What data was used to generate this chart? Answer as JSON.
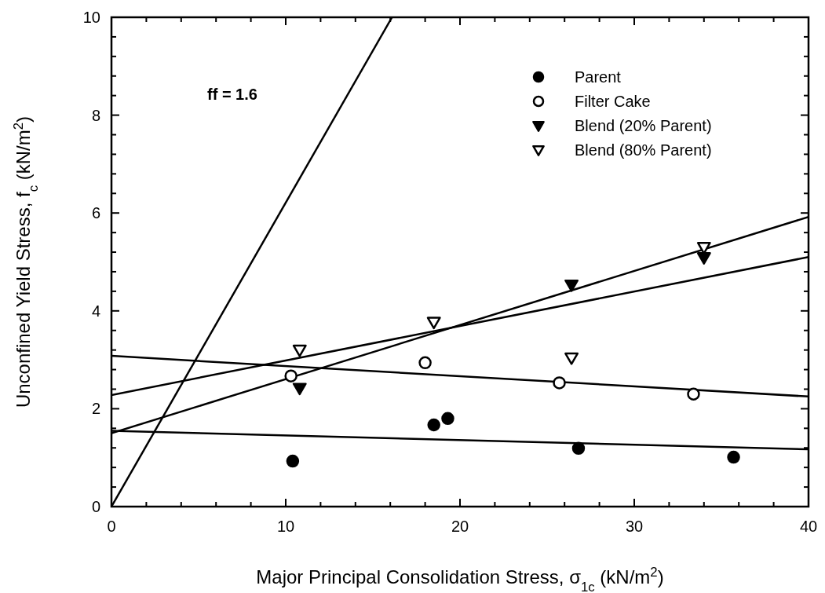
{
  "chart_data": {
    "type": "scatter",
    "xlabel": "Major Principal Consolidation Stress, σ$_{1c}$ (kN/m$^{2}$)",
    "ylabel": "Unconfined Yield Stress, f$_{c}$ (kN/m$^{2}$)",
    "xlim": [
      0,
      40
    ],
    "ylim": [
      0,
      10
    ],
    "xticks": [
      0,
      {
        "value": 2,
        "label": null
      },
      {
        "value": 4,
        "label": null
      },
      {
        "value": 6,
        "label": null
      },
      {
        "value": 8,
        "label": null
      },
      10,
      {
        "value": 12,
        "label": null
      },
      {
        "value": 14,
        "label": null
      },
      {
        "value": 16,
        "label": null
      },
      {
        "value": 18,
        "label": null
      },
      20,
      {
        "value": 22,
        "label": null
      },
      {
        "value": 24,
        "label": null
      },
      {
        "value": 26,
        "label": null
      },
      {
        "value": 28,
        "label": null
      },
      30,
      {
        "value": 32,
        "label": null
      },
      {
        "value": 34,
        "label": null
      },
      {
        "value": 36,
        "label": null
      },
      {
        "value": 38,
        "label": null
      },
      40
    ],
    "yticks": [
      0,
      {
        "value": 0.4,
        "label": null
      },
      {
        "value": 0.8,
        "label": null
      },
      {
        "value": 1.2,
        "label": null
      },
      {
        "value": 1.6,
        "label": null
      },
      2,
      {
        "value": 2.4,
        "label": null
      },
      {
        "value": 2.8,
        "label": null
      },
      {
        "value": 3.2,
        "label": null
      },
      {
        "value": 3.6,
        "label": null
      },
      4,
      {
        "value": 4.4,
        "label": null
      },
      {
        "value": 4.8,
        "label": null
      },
      {
        "value": 5.2,
        "label": null
      },
      {
        "value": 5.6,
        "label": null
      },
      6,
      {
        "value": 6.4,
        "label": null
      },
      {
        "value": 6.8,
        "label": null
      },
      {
        "value": 7.2,
        "label": null
      },
      {
        "value": 7.6,
        "label": null
      },
      8,
      {
        "value": 8.4,
        "label": null
      },
      {
        "value": 8.8,
        "label": null
      },
      {
        "value": 9.2,
        "label": null
      },
      {
        "value": 9.6,
        "label": null
      },
      10
    ],
    "grid": false,
    "legend": "top right",
    "annotations": [
      "ff = 1.6"
    ],
    "series": [
      {
        "name": "Parent",
        "marker": "circle",
        "color": "#000000",
        "x": [
          10.4,
          18.5,
          19.3,
          26.8,
          35.7
        ],
        "values": [
          0.93,
          1.67,
          1.8,
          1.19,
          1.01
        ]
      },
      {
        "name": "Filter Cake",
        "marker": "circle",
        "color": "#ffffff",
        "x": [
          10.3,
          18.0,
          25.7,
          33.4
        ],
        "values": [
          2.67,
          2.94,
          2.53,
          2.3
        ]
      },
      {
        "name": "Blend (20% Parent)",
        "marker": "triangle-down",
        "color": "#000000",
        "x": [
          10.8,
          26.4,
          34.0
        ],
        "values": [
          2.42,
          4.53,
          5.09
        ]
      },
      {
        "name": "Blend (80% Parent)",
        "marker": "triangle-down",
        "color": "#ffffff",
        "x": [
          10.8,
          18.5,
          26.4,
          34.0
        ],
        "values": [
          3.2,
          3.77,
          3.04,
          5.3
        ]
      },
      {
        "type": "line",
        "line_style": "solid",
        "color": "#000000",
        "x": [
          0,
          16.1
        ],
        "values": [
          0,
          10
        ]
      },
      {
        "type": "line",
        "line_style": "solid",
        "color": "#000000",
        "x": [
          0,
          40
        ],
        "values": [
          1.55,
          1.17
        ]
      },
      {
        "type": "line",
        "line_style": "solid",
        "color": "#000000",
        "x": [
          0,
          40
        ],
        "values": [
          3.08,
          2.25
        ]
      },
      {
        "type": "line",
        "line_style": "solid",
        "color": "#000000",
        "x": [
          0,
          40
        ],
        "values": [
          1.5,
          5.92
        ]
      },
      {
        "type": "line",
        "line_style": "solid",
        "color": "#000000",
        "x": [
          0,
          40
        ],
        "values": [
          2.28,
          5.1
        ]
      }
    ]
  }
}
